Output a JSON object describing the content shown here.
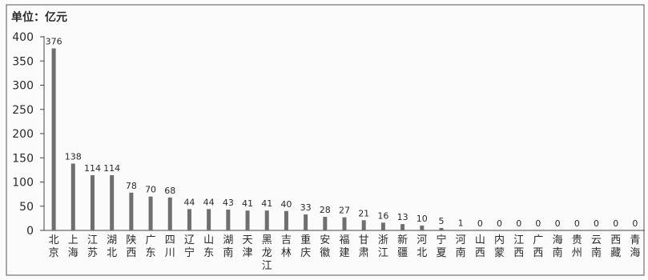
{
  "chart_data": {
    "type": "bar",
    "unit_label": "单位：亿元",
    "ylim": [
      0,
      400
    ],
    "yticks": [
      "0",
      "50",
      "100",
      "150",
      "200",
      "250",
      "300",
      "350",
      "400"
    ],
    "categories": [
      "北京",
      "上海",
      "江苏",
      "湖北",
      "陕西",
      "广东",
      "四川",
      "辽宁",
      "山东",
      "湖南",
      "天津",
      "黑龙江",
      "吉林",
      "重庆",
      "安徽",
      "福建",
      "甘肃",
      "浙江",
      "新疆",
      "河北",
      "宁夏",
      "河南",
      "山西",
      "内蒙",
      "江西",
      "广西",
      "海南",
      "贵州",
      "云南",
      "西藏",
      "青海"
    ],
    "values": [
      376,
      138,
      114,
      114,
      78,
      70,
      68,
      44,
      44,
      43,
      41,
      41,
      40,
      33,
      28,
      27,
      21,
      16,
      13,
      10,
      5,
      1,
      0,
      0,
      0,
      0,
      0,
      0,
      0,
      0,
      0
    ],
    "bar_color": "#6f6f6f",
    "grid": false,
    "legend": "none"
  }
}
